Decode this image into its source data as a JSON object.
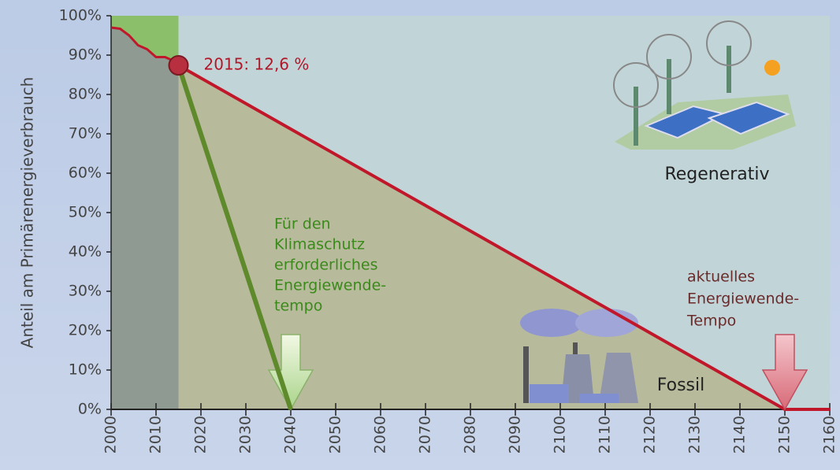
{
  "chart_data": {
    "type": "line",
    "y_label": "Anteil am Primärenergieverbrauch",
    "series": [
      {
        "color": "#c0182a",
        "x": [
          2000,
          2002,
          2004,
          2006,
          2008,
          2010,
          2012,
          2014,
          2015
        ],
        "values": [
          97,
          96.7,
          95,
          92.5,
          91.5,
          89.5,
          89.5,
          88.5,
          87.4
        ]
      },
      {
        "color": "#c0182a",
        "x": [
          2015,
          2150,
          2160
        ],
        "values": [
          87.4,
          0,
          0
        ]
      },
      {
        "color": "#5e8a2c",
        "x": [
          2015,
          2040
        ],
        "values": [
          87.4,
          0
        ]
      }
    ],
    "marker_label": "2015: 12,6 %",
    "annotations": {
      "green": [
        "Für den",
        "Klimaschutz",
        "erforderliches",
        "Energiewende-",
        "tempo"
      ],
      "red": [
        "aktuelles",
        "Energiewende-",
        "Tempo"
      ],
      "regenerativ": "Regenerativ",
      "fossil": "Fossil"
    },
    "xlim": [
      2000,
      2160
    ],
    "xticks": [
      2000,
      2010,
      2020,
      2030,
      2040,
      2050,
      2060,
      2070,
      2080,
      2090,
      2100,
      2110,
      2120,
      2130,
      2140,
      2150,
      2160
    ],
    "ylim": [
      0,
      100
    ],
    "yticks": [
      {
        "value": 0,
        "label": "0%"
      },
      {
        "value": 10,
        "label": "10%"
      },
      {
        "value": 20,
        "label": "20%"
      },
      {
        "value": 30,
        "label": "30%"
      },
      {
        "value": 40,
        "label": "40%"
      },
      {
        "value": 50,
        "label": "50%"
      },
      {
        "value": 60,
        "label": "60%"
      },
      {
        "value": 70,
        "label": "70%"
      },
      {
        "value": 80,
        "label": "80%"
      },
      {
        "value": 90,
        "label": "90%"
      },
      {
        "value": 100,
        "label": "100%"
      }
    ]
  }
}
